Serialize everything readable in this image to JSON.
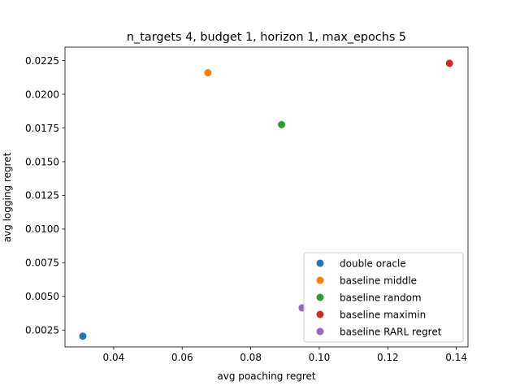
{
  "chart_data": {
    "type": "scatter",
    "title": "n_targets 4, budget 1, horizon 1, max_epochs 5",
    "xlabel": "avg poaching regret",
    "ylabel": "avg logging regret",
    "xlim": [
      0.0258,
      0.1434
    ],
    "ylim": [
      0.00125,
      0.0235
    ],
    "xticks": [
      0.04,
      0.06,
      0.08,
      0.1,
      0.12,
      0.14
    ],
    "xtick_labels": [
      "0.04",
      "0.06",
      "0.08",
      "0.10",
      "0.12",
      "0.14"
    ],
    "yticks": [
      0.0025,
      0.005,
      0.0075,
      0.01,
      0.0125,
      0.015,
      0.0175,
      0.02,
      0.0225
    ],
    "ytick_labels": [
      "0.0025",
      "0.0050",
      "0.0075",
      "0.0100",
      "0.0125",
      "0.0150",
      "0.0175",
      "0.0200",
      "0.0225"
    ],
    "grid": false,
    "legend_position": "bottom-right",
    "series": [
      {
        "name": "double oracle",
        "color": "#1f77b4",
        "points": [
          {
            "x": 0.031,
            "y": 0.00205
          }
        ]
      },
      {
        "name": "baseline middle",
        "color": "#ff7f0e",
        "points": [
          {
            "x": 0.0675,
            "y": 0.0216
          }
        ]
      },
      {
        "name": "baseline random",
        "color": "#2ca02c",
        "points": [
          {
            "x": 0.089,
            "y": 0.01775
          }
        ]
      },
      {
        "name": "baseline maximin",
        "color": "#d62728",
        "points": [
          {
            "x": 0.138,
            "y": 0.0223
          }
        ]
      },
      {
        "name": "baseline RARL regret",
        "color": "#9467bd",
        "points": [
          {
            "x": 0.095,
            "y": 0.00415
          }
        ]
      }
    ]
  }
}
